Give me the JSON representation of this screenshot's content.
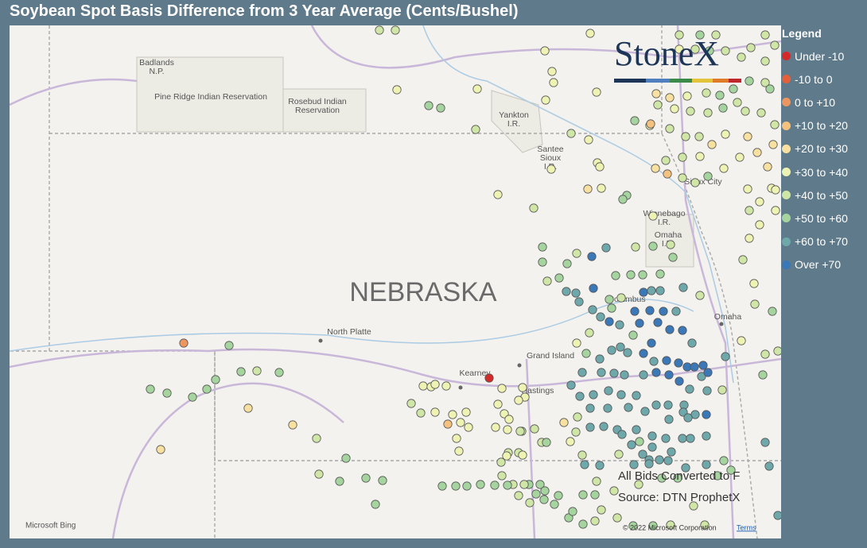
{
  "title": "Soybean Spot Basis Difference from 3 Year Average (Cents/Bushel)",
  "legend": {
    "title": "Legend",
    "items": [
      {
        "label": "Under -10",
        "color": "#d42a2a"
      },
      {
        "label": "-10 to 0",
        "color": "#e4603a"
      },
      {
        "label": "0 to +10",
        "color": "#ee9660"
      },
      {
        "label": "+10 to +20",
        "color": "#f4c27e"
      },
      {
        "label": "+20 to +30",
        "color": "#f7e0a0"
      },
      {
        "label": "+30 to +40",
        "color": "#eef3b4"
      },
      {
        "label": "+40 to +50",
        "color": "#cfe6a6"
      },
      {
        "label": "+50 to +60",
        "color": "#a6d49e"
      },
      {
        "label": "+60 to +70",
        "color": "#6ea8aa"
      },
      {
        "label": "Over +70",
        "color": "#3a78b8"
      }
    ]
  },
  "map": {
    "state_label": "NEBRASKA",
    "places": [
      [
        "Badlands",
        "N.P."
      ],
      [
        "Pine Ridge Indian Reservation"
      ],
      [
        "Rosebud Indian",
        "Reservation"
      ],
      [
        "Yankton",
        "I.R."
      ],
      [
        "Santee",
        "Sioux",
        "I.R."
      ],
      [
        "Sioux City"
      ],
      [
        "Winnebago",
        "I.R."
      ],
      [
        "Omaha",
        "I.R."
      ],
      [
        "Columbus"
      ],
      [
        "Omaha"
      ],
      [
        "North Platte"
      ],
      [
        "Grand Island"
      ],
      [
        "Kearney"
      ],
      [
        "Hastings"
      ]
    ],
    "logo": "StoneX",
    "notes": [
      "All Bids Converted to F",
      "Source: DTN ProphetX"
    ],
    "attribution": "Microsoft Bing",
    "copyright": "© 2022 Microsoft Corporation",
    "terms": "Terms"
  }
}
